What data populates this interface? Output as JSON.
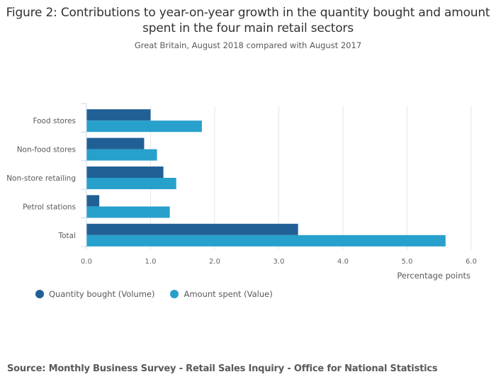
{
  "chart_data": {
    "type": "bar",
    "orientation": "horizontal",
    "title": "Figure 2: Contributions to year-on-year growth in the quantity bought and amount spent in the four main retail sectors",
    "subtitle": "Great Britain, August 2018 compared with August 2017",
    "categories": [
      "Food stores",
      "Non-food stores",
      "Non-store retailing",
      "Petrol stations",
      "Total"
    ],
    "series": [
      {
        "name": "Quantity bought (Volume)",
        "color": "#206095",
        "values": [
          1.0,
          0.9,
          1.2,
          0.2,
          3.3
        ]
      },
      {
        "name": "Amount spent (Value)",
        "color": "#27a0cc",
        "values": [
          1.8,
          1.1,
          1.4,
          1.3,
          5.6
        ]
      }
    ],
    "xlabel": "Percentage points",
    "ylabel": "",
    "xlim": [
      0,
      6
    ],
    "xticks": [
      "0.0",
      "1.0",
      "2.0",
      "3.0",
      "4.0",
      "5.0",
      "6.0"
    ],
    "grid": true,
    "legend_position": "bottom-left"
  },
  "source": "Source: Monthly Business Survey - Retail Sales Inquiry - Office for National Statistics"
}
